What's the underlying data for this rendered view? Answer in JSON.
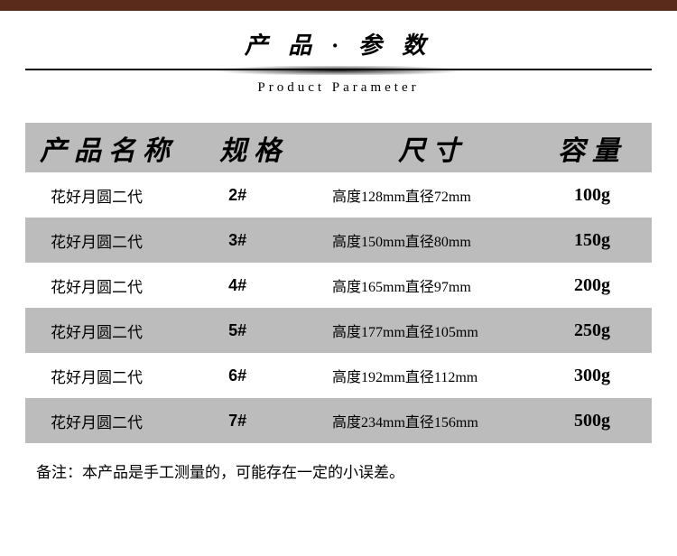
{
  "banner_color": "#5a2a1a",
  "title": {
    "cn": "产 品 · 参 数",
    "en": "Product Parameter"
  },
  "table": {
    "headers": {
      "name": "产品名称",
      "spec": "规格",
      "size": "尺寸",
      "capacity": "容量"
    },
    "header_bg": "#bcbcbc",
    "alt_bg": "#bcbcbc",
    "header_fontsize": 30,
    "rows": [
      {
        "name": "花好月圆二代",
        "spec": "2#",
        "size": "高度128mm直径72mm",
        "capacity": "100g",
        "alt": false
      },
      {
        "name": "花好月圆二代",
        "spec": "3#",
        "size": "高度150mm直径80mm",
        "capacity": "150g",
        "alt": true
      },
      {
        "name": "花好月圆二代",
        "spec": "4#",
        "size": "高度165mm直径97mm",
        "capacity": "200g",
        "alt": false
      },
      {
        "name": "花好月圆二代",
        "spec": "5#",
        "size": "高度177mm直径105mm",
        "capacity": "250g",
        "alt": true
      },
      {
        "name": "花好月圆二代",
        "spec": "6#",
        "size": "高度192mm直径112mm",
        "capacity": "300g",
        "alt": false
      },
      {
        "name": "花好月圆二代",
        "spec": "7#",
        "size": "高度234mm直径156mm",
        "capacity": "500g",
        "alt": true
      }
    ]
  },
  "footnote": "备注：本产品是手工测量的，可能存在一定的小误差。"
}
